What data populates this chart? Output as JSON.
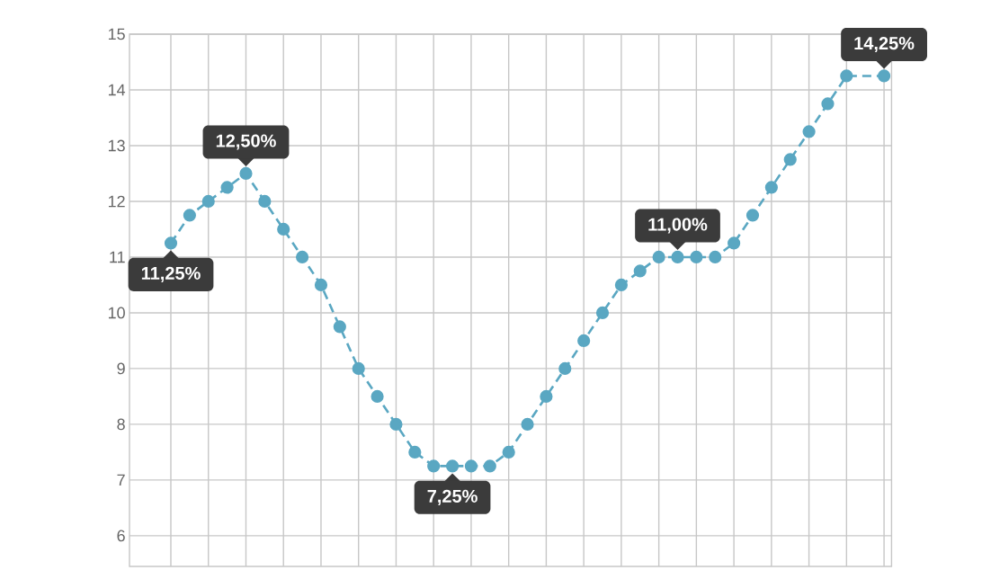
{
  "chart_data": {
    "type": "line",
    "categories": [
      null,
      null,
      null,
      null,
      null,
      null,
      null,
      null,
      null,
      null,
      null,
      null,
      null,
      null,
      null,
      null,
      null,
      null,
      null,
      null,
      null,
      null,
      null,
      null,
      null,
      null,
      null,
      null,
      null,
      null,
      null,
      null,
      null,
      null,
      null,
      null,
      null,
      null,
      null
    ],
    "values": [
      11.25,
      11.75,
      12.0,
      12.25,
      12.5,
      12.0,
      11.5,
      11.0,
      10.5,
      9.75,
      9.0,
      8.5,
      8.0,
      7.5,
      7.25,
      7.25,
      7.25,
      7.25,
      7.5,
      8.0,
      8.5,
      9.0,
      9.5,
      10.0,
      10.5,
      10.75,
      11.0,
      11.0,
      11.0,
      11.0,
      11.25,
      11.75,
      12.25,
      12.75,
      13.25,
      13.75,
      14.25,
      null,
      14.25
    ],
    "color": "#5aa7c2",
    "marker": "circle",
    "line_style": "dashed",
    "grid": true,
    "tick_labels": "y",
    "ylim": [
      5.45,
      15
    ],
    "yticks": [
      6,
      7,
      8,
      9,
      10,
      11,
      12,
      13,
      14,
      15
    ],
    "annotations": [
      {
        "text": "11,25%",
        "y": 11.25
      },
      {
        "text": "12,50%",
        "y": 12.5
      },
      {
        "text": "7,25%",
        "y": 7.25
      },
      {
        "text": "11,00%",
        "y": 11.0
      },
      {
        "text": "14,25%",
        "y": 14.25
      }
    ]
  }
}
